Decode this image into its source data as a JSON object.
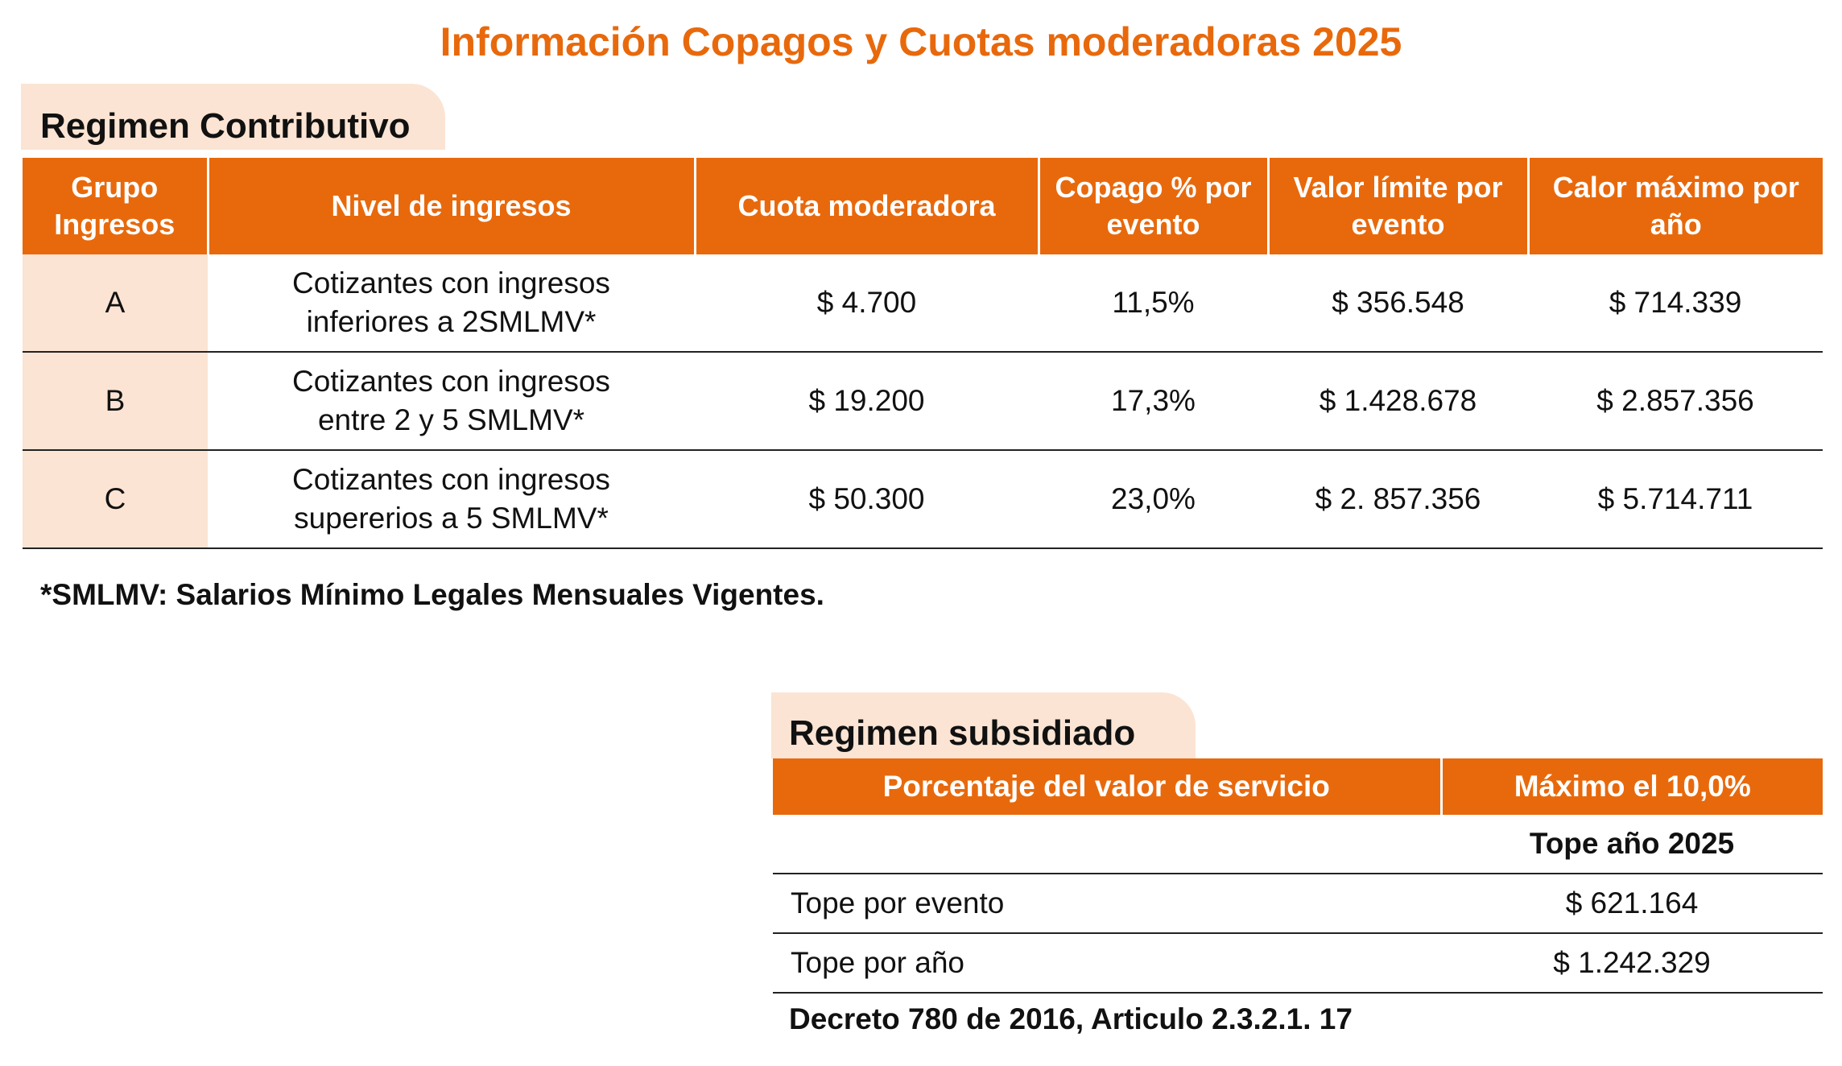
{
  "title": "Información Copagos y Cuotas moderadoras 2025",
  "colors": {
    "accent": "#E8690C",
    "light": "#FBE4D3"
  },
  "contributivo": {
    "heading": "Regimen Contributivo",
    "columns": [
      "Grupo Ingresos",
      "Nivel de ingresos",
      "Cuota moderadora",
      "Copago % por evento",
      "Valor límite por evento",
      "Calor máximo por año"
    ],
    "rows": [
      {
        "grupo": "A",
        "nivel_1": "Cotizantes con ingresos",
        "nivel_2": "inferiores a 2SMLMV*",
        "cuota": "$ 4.700",
        "copago": "11,5%",
        "limite": "$ 356.548",
        "maximo": "$ 714.339"
      },
      {
        "grupo": "B",
        "nivel_1": "Cotizantes con ingresos",
        "nivel_2": "entre 2 y 5 SMLMV*",
        "cuota": "$ 19.200",
        "copago": "17,3%",
        "limite": "$ 1.428.678",
        "maximo": "$ 2.857.356"
      },
      {
        "grupo": "C",
        "nivel_1": "Cotizantes con ingresos",
        "nivel_2": "supererios a 5 SMLMV*",
        "cuota": "$ 50.300",
        "copago": "23,0%",
        "limite": "$ 2. 857.356",
        "maximo": "$ 5.714.711"
      }
    ],
    "footnote": "*SMLMV: Salarios Mínimo Legales Mensuales Vigentes."
  },
  "subsidiado": {
    "heading": "Regimen subsidiado",
    "header_left": "Porcentaje del valor de servicio",
    "header_right": "Máximo el 10,0%",
    "subheader": "Tope año 2025",
    "rows": [
      {
        "label": "Tope por evento",
        "value": "$ 621.164"
      },
      {
        "label": "Tope por año",
        "value": "$ 1.242.329"
      }
    ],
    "source": "Decreto 780 de 2016, Articulo 2.3.2.1. 17"
  }
}
